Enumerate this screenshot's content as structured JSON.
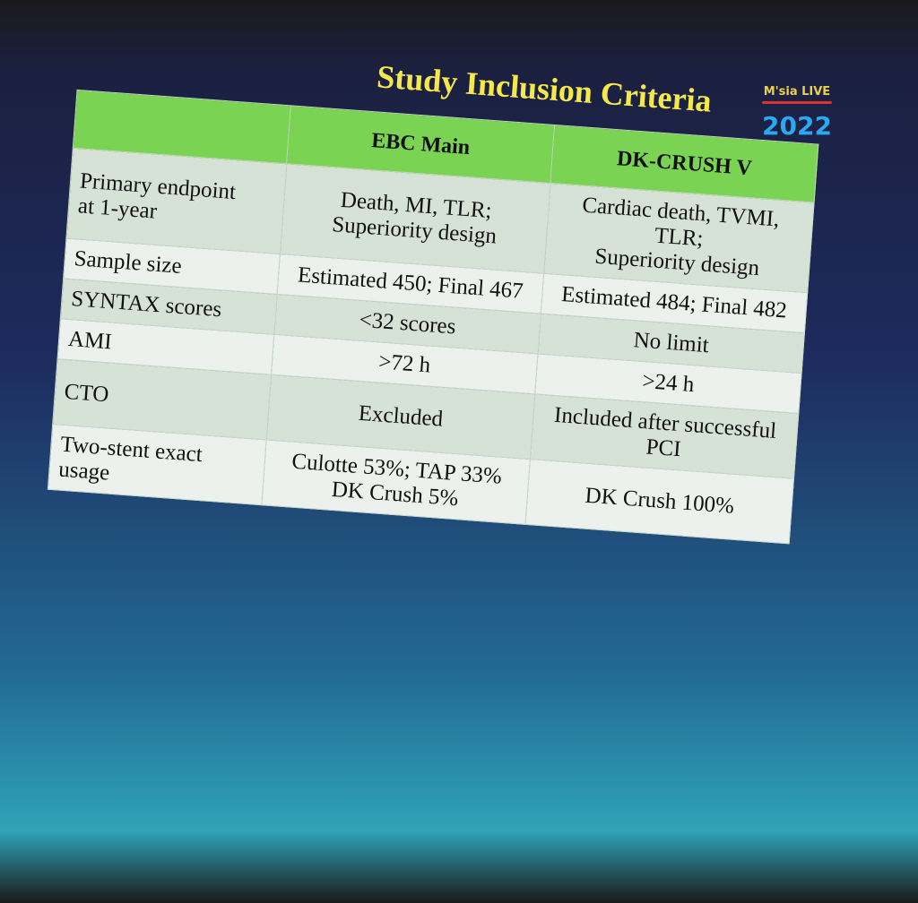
{
  "title": "Study Inclusion Criteria",
  "logo": {
    "name": "M'sia LIVE",
    "year": "2022"
  },
  "table": {
    "header": [
      "EBC Main",
      "DK-CRUSH V"
    ],
    "rows": [
      {
        "label": [
          "Primary endpoint",
          "at 1-year"
        ],
        "cells": [
          [
            "Death, MI, TLR;",
            "Superiority design"
          ],
          [
            "Cardiac death, TVMI, TLR;",
            "Superiority design"
          ]
        ]
      },
      {
        "label": [
          "Sample size"
        ],
        "cells": [
          [
            "Estimated 450; Final 467"
          ],
          [
            "Estimated 484; Final 482"
          ]
        ]
      },
      {
        "label": [
          "SYNTAX scores"
        ],
        "cells": [
          [
            "<32 scores"
          ],
          [
            "No limit"
          ]
        ]
      },
      {
        "label": [
          "AMI"
        ],
        "cells": [
          [
            ">72 h"
          ],
          [
            ">24 h"
          ]
        ]
      },
      {
        "label": [
          "CTO"
        ],
        "cells": [
          [
            "Excluded"
          ],
          [
            "Included after successful PCI"
          ]
        ]
      },
      {
        "label": [
          "Two-stent exact usage"
        ],
        "cells": [
          [
            "Culotte 53%; TAP 33%",
            "DK Crush 5%"
          ],
          [
            "DK Crush 100%"
          ]
        ]
      }
    ]
  }
}
